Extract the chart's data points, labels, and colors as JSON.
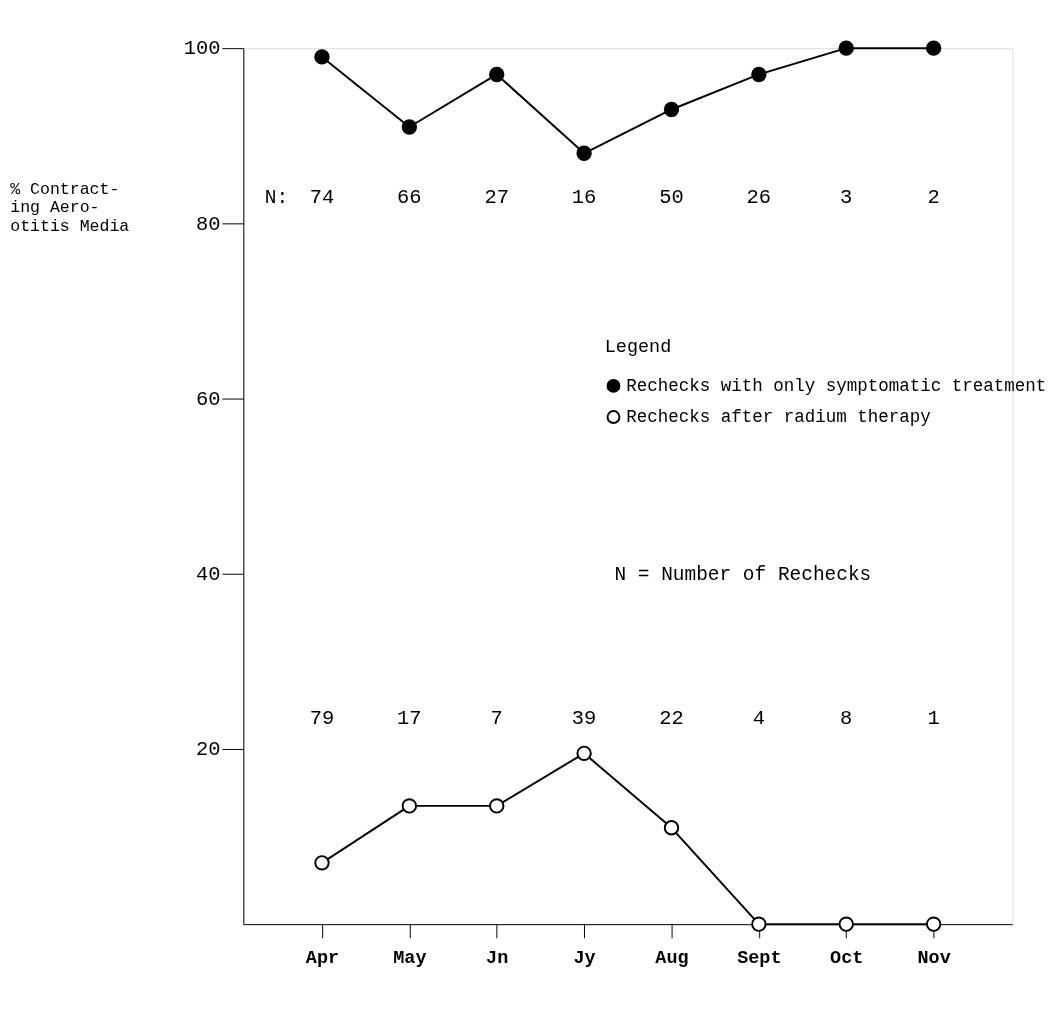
{
  "chart_data": {
    "type": "line",
    "ylabel": "% Contract-\ning Aero-\notitis Media",
    "legend_title": "Legend",
    "categories": [
      "Apr",
      "May",
      "Jn",
      "Jy",
      "Aug",
      "Sept",
      "Oct",
      "Nov"
    ],
    "series": [
      {
        "name": "Rechecks with only symptomatic treatment",
        "color": "#000000",
        "values": [
          99,
          91,
          97,
          88,
          93,
          97,
          100,
          100
        ]
      },
      {
        "name": "Rechecks after radium therapy",
        "color": "#000000",
        "values": [
          7,
          13.5,
          13.5,
          19.5,
          11,
          0,
          0,
          0
        ]
      }
    ],
    "ylim": [
      0,
      100
    ],
    "yticks": [
      20,
      40,
      60,
      80,
      100
    ],
    "grid": false,
    "legend": "right",
    "marker": "circle",
    "line_style": "solid",
    "annotations": [
      "N:",
      "N = Number of Rechecks",
      "74",
      "66",
      "27",
      "16",
      "50",
      "26",
      "3",
      "2",
      "79",
      "17",
      "7",
      "39",
      "22",
      "4",
      "8",
      "1"
    ]
  }
}
